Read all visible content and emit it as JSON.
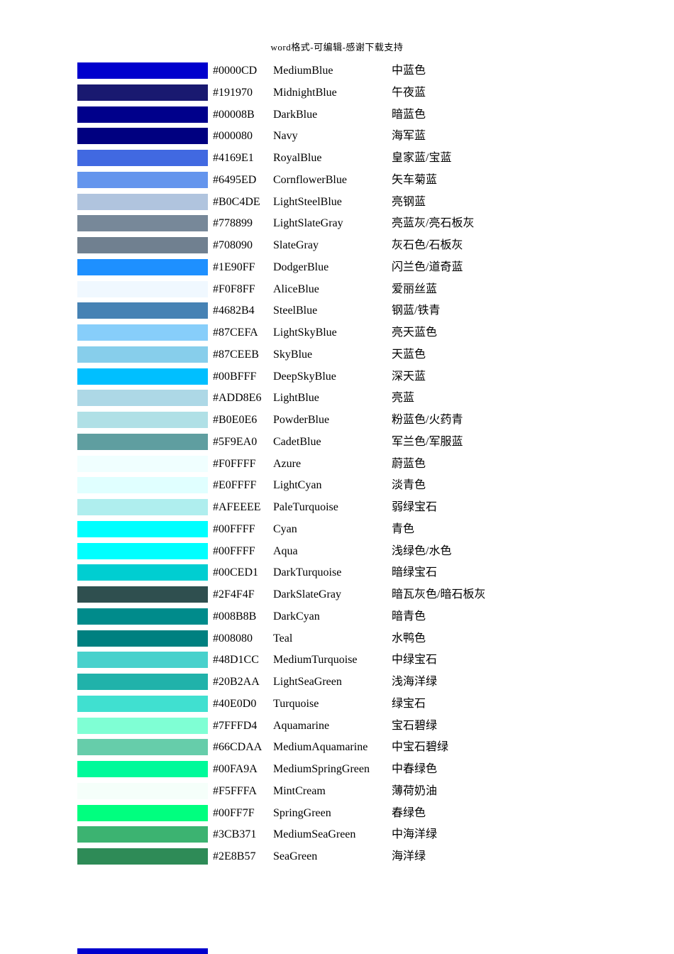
{
  "page": {
    "header": "word格式-可编辑-感谢下载支持"
  },
  "color_table": {
    "columns": [
      "swatch",
      "hex",
      "english_name",
      "chinese_name"
    ],
    "rows": [
      {
        "hex": "#0000CD",
        "name": "MediumBlue",
        "cn": "中蓝色"
      },
      {
        "hex": "#191970",
        "name": "MidnightBlue",
        "cn": "午夜蓝"
      },
      {
        "hex": "#00008B",
        "name": "DarkBlue",
        "cn": "暗蓝色"
      },
      {
        "hex": "#000080",
        "name": "Navy",
        "cn": "海军蓝"
      },
      {
        "hex": "#4169E1",
        "name": "RoyalBlue",
        "cn": "皇家蓝/宝蓝"
      },
      {
        "hex": "#6495ED",
        "name": "CornflowerBlue",
        "cn": "矢车菊蓝"
      },
      {
        "hex": "#B0C4DE",
        "name": "LightSteelBlue",
        "cn": "亮钢蓝"
      },
      {
        "hex": "#778899",
        "name": "LightSlateGray",
        "cn": "亮蓝灰/亮石板灰"
      },
      {
        "hex": "#708090",
        "name": "SlateGray",
        "cn": "灰石色/石板灰"
      },
      {
        "hex": "#1E90FF",
        "name": "DodgerBlue",
        "cn": "闪兰色/道奇蓝"
      },
      {
        "hex": "#F0F8FF",
        "name": "AliceBlue",
        "cn": "爱丽丝蓝"
      },
      {
        "hex": "#4682B4",
        "name": "SteelBlue",
        "cn": "钢蓝/铁青"
      },
      {
        "hex": "#87CEFA",
        "name": "LightSkyBlue",
        "cn": "亮天蓝色"
      },
      {
        "hex": "#87CEEB",
        "name": "SkyBlue",
        "cn": "天蓝色"
      },
      {
        "hex": "#00BFFF",
        "name": "DeepSkyBlue",
        "cn": "深天蓝"
      },
      {
        "hex": "#ADD8E6",
        "name": "LightBlue",
        "cn": "亮蓝"
      },
      {
        "hex": "#B0E0E6",
        "name": "PowderBlue",
        "cn": "粉蓝色/火药青"
      },
      {
        "hex": "#5F9EA0",
        "name": "CadetBlue",
        "cn": "军兰色/军服蓝"
      },
      {
        "hex": "#F0FFFF",
        "name": "Azure",
        "cn": "蔚蓝色"
      },
      {
        "hex": "#E0FFFF",
        "name": "LightCyan",
        "cn": "淡青色"
      },
      {
        "hex": "#AFEEEE",
        "name": "PaleTurquoise",
        "cn": "弱绿宝石"
      },
      {
        "hex": "#00FFFF",
        "name": "Cyan",
        "cn": "青色"
      },
      {
        "hex": "#00FFFF",
        "name": "Aqua",
        "cn": "浅绿色/水色"
      },
      {
        "hex": "#00CED1",
        "name": "DarkTurquoise",
        "cn": "暗绿宝石"
      },
      {
        "hex": "#2F4F4F",
        "name": "DarkSlateGray",
        "cn": "暗瓦灰色/暗石板灰"
      },
      {
        "hex": "#008B8B",
        "name": "DarkCyan",
        "cn": "暗青色"
      },
      {
        "hex": "#008080",
        "name": "Teal",
        "cn": "水鸭色"
      },
      {
        "hex": "#48D1CC",
        "name": "MediumTurquoise",
        "cn": "中绿宝石"
      },
      {
        "hex": "#20B2AA",
        "name": "LightSeaGreen",
        "cn": "浅海洋绿"
      },
      {
        "hex": "#40E0D0",
        "name": "Turquoise",
        "cn": "绿宝石"
      },
      {
        "hex": "#7FFFD4",
        "name": "Aquamarine",
        "cn": "宝石碧绿"
      },
      {
        "hex": "#66CDAA",
        "name": "MediumAquamarine",
        "cn": "中宝石碧绿"
      },
      {
        "hex": "#00FA9A",
        "name": "MediumSpringGreen",
        "cn": "中春绿色"
      },
      {
        "hex": "#F5FFFA",
        "name": "MintCream",
        "cn": "薄荷奶油"
      },
      {
        "hex": "#00FF7F",
        "name": "SpringGreen",
        "cn": "春绿色"
      },
      {
        "hex": "#3CB371",
        "name": "MediumSeaGreen",
        "cn": "中海洋绿"
      },
      {
        "hex": "#2E8B57",
        "name": "SeaGreen",
        "cn": "海洋绿"
      }
    ]
  },
  "partial_next_row": {
    "color": "#0000CD"
  }
}
